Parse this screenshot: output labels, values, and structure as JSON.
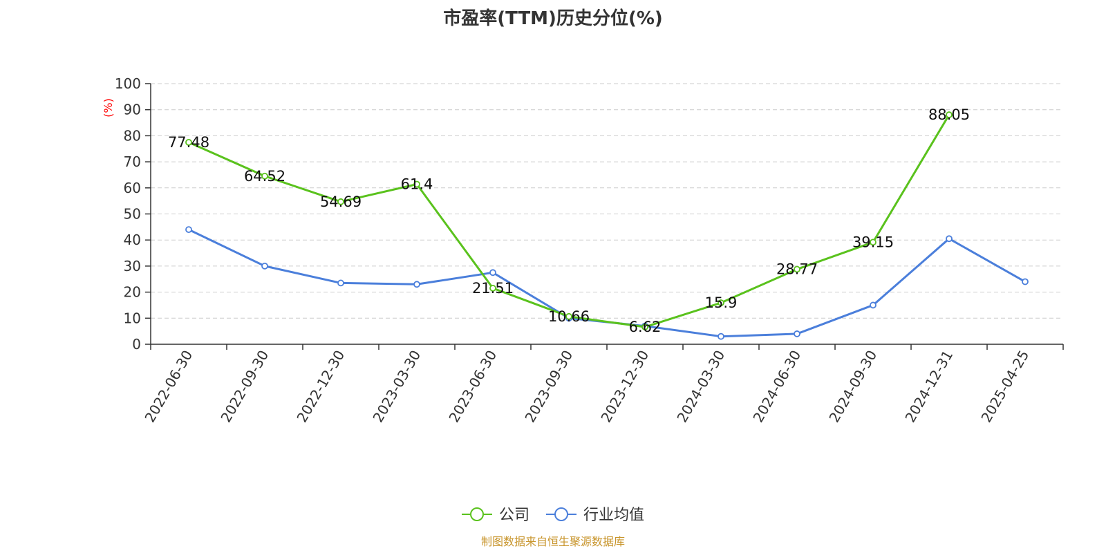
{
  "title": "市盈率(TTM)历史分位(%)",
  "footer": "制图数据来自恒生聚源数据库",
  "colors": {
    "company": "#5ac21d",
    "industry": "#4b7fdb",
    "unit_label": "#ff0000",
    "footer": "#c8952c"
  },
  "chart_data": {
    "type": "line",
    "title": "市盈率(TTM)历史分位(%)",
    "ylabel": "(%)",
    "xlabel": "",
    "ylim": [
      0,
      100
    ],
    "yticks": [
      0,
      10,
      20,
      30,
      40,
      50,
      60,
      70,
      80,
      90,
      100
    ],
    "grid": true,
    "legend_position": "bottom-center",
    "categories": [
      "2022-06-30",
      "2022-09-30",
      "2022-12-30",
      "2023-03-30",
      "2023-06-30",
      "2023-09-30",
      "2023-12-30",
      "2024-03-30",
      "2024-06-30",
      "2024-09-30",
      "2024-12-31",
      "2025-04-25"
    ],
    "series": [
      {
        "name": "公司",
        "color": "#5ac21d",
        "show_labels": true,
        "values": [
          77.48,
          64.52,
          54.69,
          61.4,
          21.51,
          10.66,
          6.62,
          15.9,
          28.77,
          39.15,
          88.05,
          null
        ]
      },
      {
        "name": "行业均值",
        "color": "#4b7fdb",
        "show_labels": false,
        "values": [
          44,
          30,
          23.5,
          23,
          27.5,
          10,
          7,
          3,
          4,
          15,
          40.5,
          24
        ]
      }
    ]
  }
}
